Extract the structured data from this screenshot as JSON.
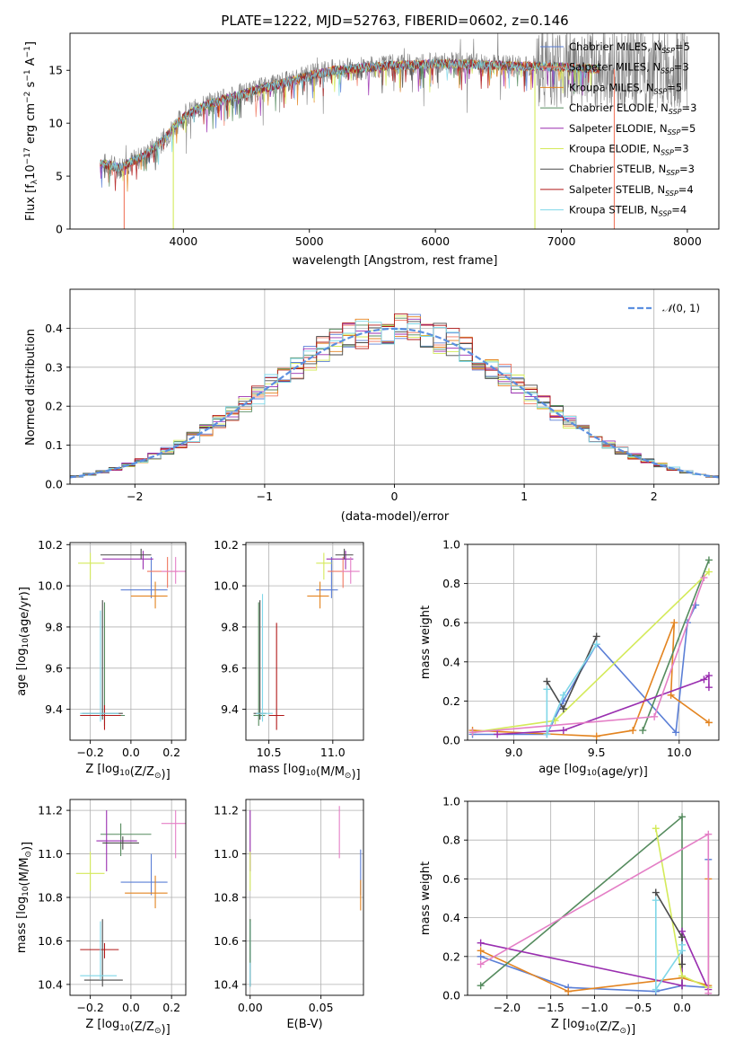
{
  "colors": {
    "chabrier_miles": "#5b7fd6",
    "salpeter_miles": "#f07860",
    "kroupa_miles": "#e38420",
    "chabrier_elodie": "#558b5e",
    "salpeter_elodie": "#9a2fb0",
    "kroupa_elodie": "#d4ea5a",
    "chabrier_stelib": "#4a4a4a",
    "salpeter_stelib": "#b01818",
    "kroupa_stelib": "#7fd7e8",
    "pink": "#e47fc6",
    "gray_data": "#808080",
    "normal_curve": "#5b8fe0"
  },
  "chart_data": [
    {
      "id": "spectrum",
      "type": "line",
      "title": "PLATE=1222, MJD=52763, FIBERID=0602, z=0.146",
      "xlabel": "wavelength [Angstrom, rest frame]",
      "ylabel": "Flux [f$_\\lambda$10$^{-17}$ erg cm$^{-2}$ s$^{-1}$ A$^{-1}$]",
      "xlim": [
        3100,
        8250
      ],
      "ylim": [
        0,
        18.5
      ],
      "xticks": [
        "4000",
        "5000",
        "6000",
        "7000",
        "8000"
      ],
      "yticks": [
        "0",
        "5",
        "10",
        "15"
      ],
      "legend": {
        "position": "top-right",
        "entries": [
          "Chabrier MILES, N$_{SSP}$=5",
          "Salpeter MILES, N$_{SSP}$=3",
          "Kroupa MILES, N$_{SSP}$=5",
          "Chabrier ELODIE, N$_{SSP}$=3",
          "Salpeter ELODIE, N$_{SSP}$=5",
          "Kroupa ELODIE, N$_{SSP}$=3",
          "Chabrier STELIB, N$_{SSP}$=3",
          "Salpeter STELIB, N$_{SSP}$=4",
          "Kroupa STELIB, N$_{SSP}$=4"
        ]
      },
      "continuum": [
        [
          3340,
          6.2
        ],
        [
          3500,
          5.8
        ],
        [
          3700,
          7.0
        ],
        [
          3850,
          8.5
        ],
        [
          3950,
          10.0
        ],
        [
          4050,
          11.0
        ],
        [
          4200,
          11.8
        ],
        [
          4400,
          12.5
        ],
        [
          4600,
          13.2
        ],
        [
          4800,
          13.8
        ],
        [
          5000,
          14.5
        ],
        [
          5200,
          15.0
        ],
        [
          5400,
          15.2
        ],
        [
          5600,
          15.4
        ],
        [
          5800,
          15.5
        ],
        [
          6000,
          15.6
        ],
        [
          6200,
          15.6
        ],
        [
          6400,
          15.5
        ],
        [
          6600,
          15.4
        ],
        [
          6800,
          15.4
        ],
        [
          7000,
          15.3
        ],
        [
          7200,
          15.2
        ],
        [
          7300,
          15.1
        ]
      ],
      "model_range": [
        3340,
        7300
      ],
      "data_range": [
        3340,
        8000
      ],
      "absorption_dips": [
        [
          3530,
          0.0,
          "salpeter_miles"
        ],
        [
          3920,
          0.0,
          "kroupa_elodie"
        ],
        [
          6790,
          0.0,
          "kroupa_elodie"
        ],
        [
          7420,
          0.0,
          "salpeter_miles"
        ]
      ]
    },
    {
      "id": "residuals",
      "type": "histogram",
      "xlabel": "(data-model)/error",
      "ylabel": "Normed distribution",
      "xlim": [
        -2.5,
        2.5
      ],
      "ylim": [
        0,
        0.5
      ],
      "xticks": [
        "−2",
        "−1",
        "0",
        "1",
        "2"
      ],
      "yticks": [
        "0.0",
        "0.1",
        "0.2",
        "0.3",
        "0.4"
      ],
      "bin_width": 0.1,
      "legend": {
        "position": "top-right",
        "entries": [
          "$\\mathcal{N}(0,1)$"
        ]
      },
      "reference_curve": "normal pdf, mean 0, sigma 1"
    },
    {
      "id": "age_vs_Z",
      "type": "errorbar",
      "xlabel": "Z [log$_{10}$(Z/Z$_\\odot$)]",
      "ylabel": "age  [log$_{10}$(age/yr)]",
      "xlim": [
        -0.3,
        0.27
      ],
      "ylim": [
        9.25,
        10.21
      ],
      "xticks": [
        "−0.2",
        "0.0",
        "0.2"
      ],
      "yticks": [
        "9.4",
        "9.6",
        "9.8",
        "10.0",
        "10.2"
      ],
      "points": [
        {
          "color": "chabrier_miles",
          "x": 0.1,
          "xerr": [
            0.15,
            0.08
          ],
          "y": 9.98,
          "yerr": [
            0.04,
            0.16
          ]
        },
        {
          "color": "salpeter_miles",
          "x": 0.18,
          "xerr": [
            0.1,
            0.05
          ],
          "y": 10.07,
          "yerr": [
            0.08,
            0.07
          ]
        },
        {
          "color": "kroupa_miles",
          "x": 0.12,
          "xerr": [
            0.12,
            0.06
          ],
          "y": 9.95,
          "yerr": [
            0.06,
            0.07
          ]
        },
        {
          "color": "chabrier_elodie",
          "x": -0.13,
          "xerr": [
            0.12,
            0.1
          ],
          "y": 9.37,
          "yerr": [
            0.05,
            0.55
          ]
        },
        {
          "color": "salpeter_elodie",
          "x": 0.06,
          "xerr": [
            0.2,
            0.05
          ],
          "y": 10.13,
          "yerr": [
            0.05,
            0.04
          ]
        },
        {
          "color": "kroupa_elodie",
          "x": -0.2,
          "xerr": [
            0.06,
            0.07
          ],
          "y": 10.11,
          "yerr": [
            0.08,
            0.05
          ]
        },
        {
          "color": "chabrier_stelib",
          "x": -0.14,
          "xerr": [
            0.1,
            0.1
          ],
          "y": 9.38,
          "yerr": [
            0.03,
            0.55
          ]
        },
        {
          "color": "salpeter_stelib",
          "x": -0.13,
          "xerr": [
            0.12,
            0.08
          ],
          "y": 9.37,
          "yerr": [
            0.07,
            0.05
          ]
        },
        {
          "color": "kroupa_stelib",
          "x": -0.15,
          "xerr": [
            0.1,
            0.09
          ],
          "y": 9.38,
          "yerr": [
            0.04,
            0.5
          ]
        },
        {
          "color": "pink",
          "x": 0.22,
          "xerr": [
            0.07,
            0.05
          ],
          "y": 10.07,
          "yerr": [
            0.06,
            0.07
          ]
        },
        {
          "color": "chabrier_stelib",
          "x": 0.05,
          "xerr": [
            0.2,
            0.05
          ],
          "y": 10.15,
          "yerr": [
            0.02,
            0.03
          ]
        }
      ]
    },
    {
      "id": "age_vs_mass",
      "type": "errorbar",
      "xlabel": "mass [log$_{10}$(M/M$_\\odot$)]",
      "ylabel": "",
      "xlim": [
        10.32,
        11.24
      ],
      "ylim": [
        9.25,
        10.21
      ],
      "xticks": [
        "10.5",
        "11.0"
      ],
      "yticks": [
        "9.4",
        "9.6",
        "9.8",
        "10.0",
        "10.2"
      ],
      "points": [
        {
          "color": "chabrier_miles",
          "x": 10.99,
          "xerr": [
            0.12,
            0.05
          ],
          "y": 9.98,
          "yerr": [
            0.04,
            0.16
          ]
        },
        {
          "color": "salpeter_miles",
          "x": 11.08,
          "xerr": [
            0.12,
            0.06
          ],
          "y": 10.07,
          "yerr": [
            0.08,
            0.07
          ]
        },
        {
          "color": "kroupa_miles",
          "x": 10.9,
          "xerr": [
            0.1,
            0.07
          ],
          "y": 9.95,
          "yerr": [
            0.06,
            0.07
          ]
        },
        {
          "color": "chabrier_elodie",
          "x": 10.42,
          "xerr": [
            0.04,
            0.05
          ],
          "y": 9.37,
          "yerr": [
            0.05,
            0.55
          ]
        },
        {
          "color": "salpeter_elodie",
          "x": 11.1,
          "xerr": [
            0.15,
            0.06
          ],
          "y": 10.13,
          "yerr": [
            0.05,
            0.04
          ]
        },
        {
          "color": "kroupa_elodie",
          "x": 10.93,
          "xerr": [
            0.06,
            0.06
          ],
          "y": 10.11,
          "yerr": [
            0.08,
            0.05
          ]
        },
        {
          "color": "chabrier_stelib",
          "x": 10.43,
          "xerr": [
            0.05,
            0.05
          ],
          "y": 9.38,
          "yerr": [
            0.03,
            0.55
          ]
        },
        {
          "color": "salpeter_stelib",
          "x": 10.56,
          "xerr": [
            0.06,
            0.06
          ],
          "y": 9.37,
          "yerr": [
            0.07,
            0.45
          ]
        },
        {
          "color": "kroupa_stelib",
          "x": 10.45,
          "xerr": [
            0.05,
            0.08
          ],
          "y": 9.38,
          "yerr": [
            0.04,
            0.58
          ]
        },
        {
          "color": "pink",
          "x": 11.14,
          "xerr": [
            0.07,
            0.07
          ],
          "y": 10.07,
          "yerr": [
            0.06,
            0.07
          ]
        },
        {
          "color": "chabrier_stelib",
          "x": 11.09,
          "xerr": [
            0.07,
            0.07
          ],
          "y": 10.15,
          "yerr": [
            0.02,
            0.03
          ]
        }
      ]
    },
    {
      "id": "weight_vs_age",
      "type": "line",
      "xlabel": "age  [log$_{10}$(age/yr)]",
      "ylabel": "mass weight",
      "xlim": [
        8.72,
        10.24
      ],
      "ylim": [
        0,
        1.0
      ],
      "xticks": [
        "9.0",
        "9.5",
        "10.0"
      ],
      "yticks": [
        "0.0",
        "0.2",
        "0.4",
        "0.6",
        "0.8",
        "1.0"
      ],
      "series": [
        {
          "color": "chabrier_miles",
          "x": [
            8.75,
            9.2,
            9.3,
            9.5,
            9.98,
            10.05,
            10.1
          ],
          "y": [
            0.03,
            0.03,
            0.2,
            0.49,
            0.04,
            0.6,
            0.69
          ]
        },
        {
          "color": "kroupa_miles",
          "x": [
            8.75,
            9.5,
            9.72,
            9.97,
            9.95,
            10.18
          ],
          "y": [
            0.05,
            0.02,
            0.05,
            0.6,
            0.23,
            0.09
          ]
        },
        {
          "color": "chabrier_elodie",
          "x": [
            9.78,
            10.18
          ],
          "y": [
            0.05,
            0.92
          ]
        },
        {
          "color": "salpeter_elodie",
          "x": [
            8.9,
            9.3,
            10.15,
            10.18,
            10.18
          ],
          "y": [
            0.03,
            0.05,
            0.31,
            0.33,
            0.27
          ]
        },
        {
          "color": "kroupa_elodie",
          "x": [
            8.75,
            9.25,
            10.18
          ],
          "y": [
            0.04,
            0.1,
            0.86
          ]
        },
        {
          "color": "chabrier_stelib",
          "x": [
            9.2,
            9.3,
            9.5
          ],
          "y": [
            0.3,
            0.16,
            0.53
          ]
        },
        {
          "color": "kroupa_stelib",
          "x": [
            9.2,
            9.2,
            9.3,
            9.5
          ],
          "y": [
            0.26,
            0.03,
            0.23,
            0.49
          ]
        },
        {
          "color": "pink",
          "x": [
            8.75,
            9.85,
            10.15
          ],
          "y": [
            0.04,
            0.12,
            0.83
          ]
        }
      ]
    },
    {
      "id": "mass_vs_Z",
      "type": "errorbar",
      "xlabel": "Z [log$_{10}$(Z/Z$_\\odot$)]",
      "ylabel": "mass [log$_{10}$(M/M$_\\odot$)]",
      "xlim": [
        -0.3,
        0.27
      ],
      "ylim": [
        10.35,
        11.25
      ],
      "xticks": [
        "−0.2",
        "0.0",
        "0.2"
      ],
      "yticks": [
        "10.4",
        "10.6",
        "10.8",
        "11.0",
        "11.2"
      ],
      "points": [
        {
          "color": "chabrier_miles",
          "x": 0.1,
          "xerr": [
            0.15,
            0.08
          ],
          "y": 10.87,
          "yerr": [
            0.06,
            0.13
          ]
        },
        {
          "color": "kroupa_miles",
          "x": 0.12,
          "xerr": [
            0.15,
            0.06
          ],
          "y": 10.82,
          "yerr": [
            0.07,
            0.08
          ]
        },
        {
          "color": "chabrier_elodie",
          "x": -0.05,
          "xerr": [
            0.1,
            0.15
          ],
          "y": 11.09,
          "yerr": [
            0.1,
            0.05
          ]
        },
        {
          "color": "salpeter_elodie",
          "x": -0.12,
          "xerr": [
            0.05,
            0.15
          ],
          "y": 11.06,
          "yerr": [
            0.14,
            0.14
          ]
        },
        {
          "color": "kroupa_elodie",
          "x": -0.2,
          "xerr": [
            0.07,
            0.07
          ],
          "y": 10.91,
          "yerr": [
            0.08,
            0.1
          ]
        },
        {
          "color": "chabrier_stelib",
          "x": -0.14,
          "xerr": [
            0.09,
            0.1
          ],
          "y": 10.42,
          "yerr": [
            0.03,
            0.28
          ]
        },
        {
          "color": "salpeter_stelib",
          "x": -0.13,
          "xerr": [
            0.12,
            0.07
          ],
          "y": 10.56,
          "yerr": [
            0.04,
            0.03
          ]
        },
        {
          "color": "kroupa_stelib",
          "x": -0.15,
          "xerr": [
            0.1,
            0.08
          ],
          "y": 10.44,
          "yerr": [
            0.02,
            0.25
          ]
        },
        {
          "color": "pink",
          "x": 0.22,
          "xerr": [
            0.07,
            0.05
          ],
          "y": 11.14,
          "yerr": [
            0.16,
            0.06
          ]
        },
        {
          "color": "chabrier_stelib",
          "x": -0.04,
          "xerr": [
            0.1,
            0.08
          ],
          "y": 11.05,
          "yerr": [
            0.03,
            0.03
          ]
        }
      ]
    },
    {
      "id": "mass_vs_EBV",
      "type": "errorbar",
      "xlabel": "E(B-V)",
      "ylabel": "",
      "xlim": [
        -0.003,
        0.08
      ],
      "ylim": [
        10.35,
        11.25
      ],
      "xticks": [
        "0.00",
        "0.05"
      ],
      "yticks": [
        "10.4",
        "10.6",
        "10.8",
        "11.0",
        "11.2"
      ],
      "points": [
        {
          "color": "chabrier_miles",
          "x": 0.078,
          "xerr": [
            0,
            0
          ],
          "y": 10.87,
          "yerr": [
            0.06,
            0.15
          ]
        },
        {
          "color": "kroupa_miles",
          "x": 0.078,
          "xerr": [
            0,
            0
          ],
          "y": 10.82,
          "yerr": [
            0.08,
            0.06
          ]
        },
        {
          "color": "pink",
          "x": 0.063,
          "xerr": [
            0,
            0
          ],
          "y": 11.14,
          "yerr": [
            0.16,
            0.08
          ]
        },
        {
          "color": "salpeter_elodie",
          "x": 0.0,
          "xerr": [
            0,
            0
          ],
          "y": 11.06,
          "yerr": [
            0.14,
            0.14
          ]
        },
        {
          "color": "kroupa_elodie",
          "x": 0.0,
          "xerr": [
            0,
            0
          ],
          "y": 10.91,
          "yerr": [
            0.08,
            0.1
          ]
        },
        {
          "color": "chabrier_stelib",
          "x": 0.0,
          "xerr": [
            0,
            0
          ],
          "y": 10.42,
          "yerr": [
            0.03,
            0.28
          ]
        },
        {
          "color": "kroupa_stelib",
          "x": 0.0,
          "xerr": [
            0,
            0
          ],
          "y": 10.44,
          "yerr": [
            0.05,
            0.25
          ]
        },
        {
          "color": "chabrier_elodie",
          "x": 0.0,
          "xerr": [
            0,
            0
          ],
          "y": 10.6,
          "yerr": [
            0.1,
            0.1
          ]
        }
      ]
    },
    {
      "id": "weight_vs_Z",
      "type": "line",
      "xlabel": "Z [log$_{10}$(Z/Z$_\\odot$)]",
      "ylabel": "mass weight",
      "xlim": [
        -2.45,
        0.42
      ],
      "ylim": [
        0,
        1.0
      ],
      "xticks": [
        "−2.0",
        "−1.5",
        "−1.0",
        "−0.5",
        "0.0"
      ],
      "yticks": [
        "0.0",
        "0.2",
        "0.4",
        "0.6",
        "0.8",
        "1.0"
      ],
      "series": [
        {
          "color": "chabrier_miles",
          "x": [
            -2.3,
            -1.3,
            -0.3,
            0.0,
            0.3,
            0.3
          ],
          "y": [
            0.2,
            0.04,
            0.02,
            0.05,
            0.04,
            0.7
          ]
        },
        {
          "color": "kroupa_miles",
          "x": [
            -2.3,
            -1.3,
            0.0,
            0.3,
            0.3
          ],
          "y": [
            0.23,
            0.02,
            0.09,
            0.05,
            0.6
          ]
        },
        {
          "color": "chabrier_elodie",
          "x": [
            -2.3,
            0.0,
            0.0
          ],
          "y": [
            0.05,
            0.92,
            0.05
          ]
        },
        {
          "color": "salpeter_elodie",
          "x": [
            -2.3,
            0.0,
            0.0,
            0.3
          ],
          "y": [
            0.27,
            0.05,
            0.33,
            0.03
          ]
        },
        {
          "color": "kroupa_elodie",
          "x": [
            -0.3,
            0.0,
            0.3
          ],
          "y": [
            0.86,
            0.1,
            0.04
          ]
        },
        {
          "color": "chabrier_stelib",
          "x": [
            -0.3,
            0.0,
            0.0
          ],
          "y": [
            0.53,
            0.3,
            0.16
          ]
        },
        {
          "color": "kroupa_stelib",
          "x": [
            -0.3,
            -0.3,
            0.0,
            0.0
          ],
          "y": [
            0.49,
            0.03,
            0.23,
            0.26
          ]
        },
        {
          "color": "pink",
          "x": [
            -2.3,
            0.3,
            0.3
          ],
          "y": [
            0.16,
            0.83,
            0.01
          ]
        }
      ]
    }
  ]
}
